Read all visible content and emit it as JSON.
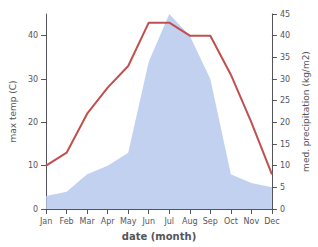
{
  "chart_data": {
    "type": "line",
    "categories": [
      "Jan",
      "Feb",
      "Mar",
      "Apr",
      "May",
      "Jun",
      "Jul",
      "Aug",
      "Sep",
      "Oct",
      "Nov",
      "Dec"
    ],
    "series": [
      {
        "type": "area",
        "color": "#b8c9ed",
        "axis": "y2",
        "values": [
          3,
          4,
          8,
          10,
          13,
          34,
          45,
          40,
          30,
          8,
          6,
          5
        ]
      },
      {
        "type": "line",
        "color": "#c0504d",
        "values": [
          10,
          13,
          22,
          28,
          33,
          43,
          43,
          40,
          40,
          31,
          20,
          8
        ]
      }
    ],
    "xlabel": "date (month)",
    "ylabel": "max temp (C)",
    "y2label": "med. precipitation (kg/m2)",
    "ylim": [
      0,
      45
    ],
    "yticks": [
      0,
      10,
      20,
      30,
      40
    ],
    "y2lim": [
      0,
      45
    ],
    "y2ticks": [
      0,
      5,
      10,
      15,
      20,
      25,
      30,
      35,
      40,
      45
    ],
    "grid": false
  }
}
